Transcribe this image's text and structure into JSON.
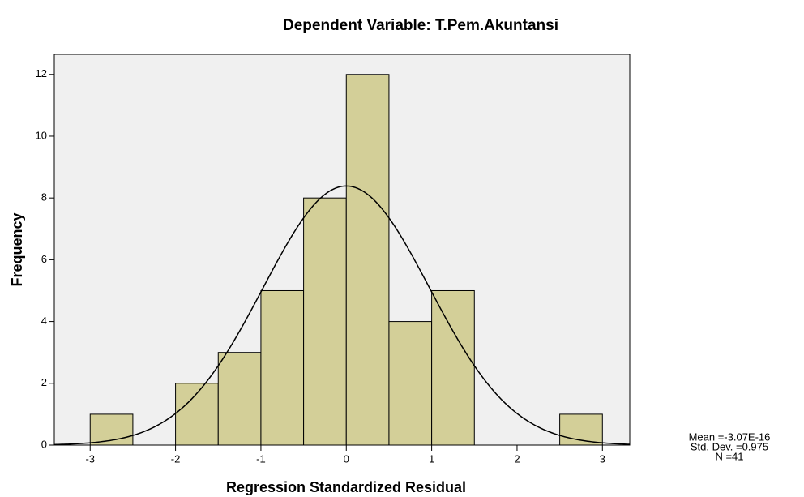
{
  "chart_data": {
    "type": "histogram",
    "title": "Dependent Variable: T.Pem.Akuntansi",
    "x_label": "Regression Standardized Residual",
    "y_label": "Frequency",
    "bins": [
      -3,
      -2.5,
      -2,
      -1.5,
      -1,
      -0.5,
      0,
      0.5,
      1,
      1.5,
      2,
      2.5,
      3
    ],
    "values": [
      1,
      0,
      2,
      3,
      5,
      8,
      12,
      4,
      5,
      0,
      0,
      1
    ],
    "color": "#d3cf98",
    "xlim": [
      -3.42,
      3.32
    ],
    "ylim": [
      0,
      12.65
    ],
    "xticks": [
      -3,
      -2,
      -1,
      0,
      1,
      2,
      3
    ],
    "yticks": [
      0,
      2,
      4,
      6,
      8,
      10,
      12
    ],
    "stats": {
      "mean": {
        "value": -3.07e-16,
        "label": "Mean =-3.07E-16"
      },
      "std_dev": {
        "value": 0.975,
        "label": "Std. Dev. =0.975"
      },
      "n": {
        "value": 41,
        "label": "N =41"
      }
    }
  }
}
